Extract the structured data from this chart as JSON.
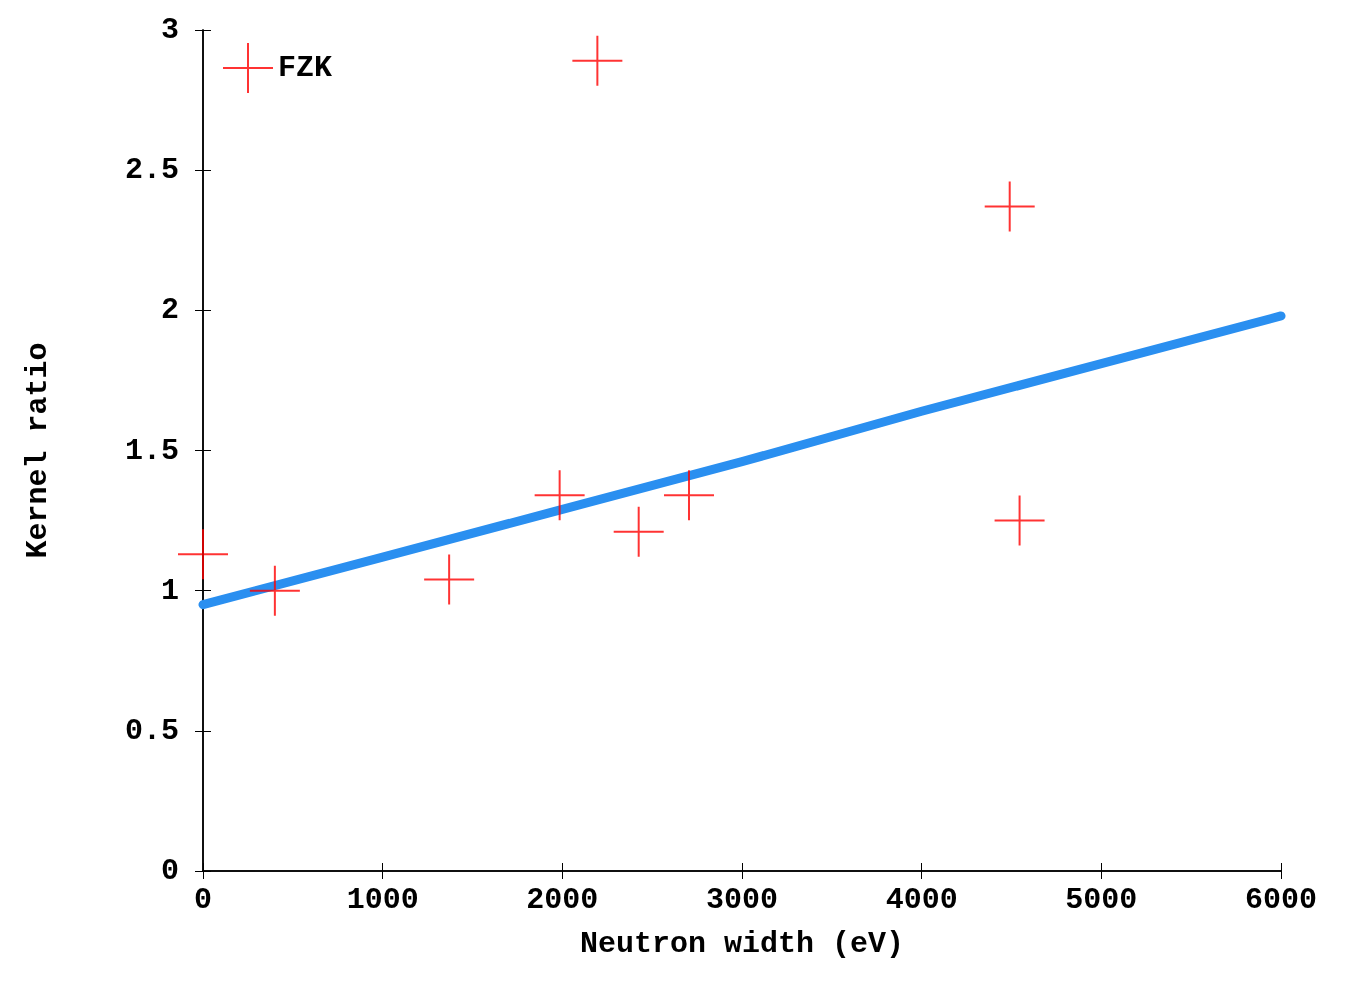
{
  "chart_data": {
    "type": "scatter",
    "xlabel": "Neutron width (eV)",
    "ylabel": "Kernel ratio",
    "xlim": [
      0,
      6000
    ],
    "xticks": [
      0,
      1000,
      2000,
      3000,
      4000,
      5000,
      6000
    ],
    "ylim": [
      0,
      3
    ],
    "yticks": [
      0,
      0.5,
      1,
      1.5,
      2,
      2.5,
      3
    ],
    "grid": false,
    "legend": "top left",
    "series": [
      {
        "name": "FZK",
        "marker": "cross",
        "color": "#ff0000",
        "x": [
          0,
          400,
          1370,
          1985,
          2195,
          2425,
          2705,
          4490,
          4545
        ],
        "values": [
          1.13,
          1.0,
          1.04,
          1.34,
          2.89,
          1.21,
          1.34,
          2.37,
          1.25
        ]
      },
      {
        "type": "line",
        "marker": "none",
        "line_style": "solid",
        "color": "#2a8ff0",
        "x": [
          0,
          1000,
          2000,
          3000,
          4000,
          5000,
          6000
        ],
        "values": [
          0.95,
          1.12,
          1.29,
          1.46,
          1.64,
          1.81,
          1.98
        ]
      }
    ]
  }
}
